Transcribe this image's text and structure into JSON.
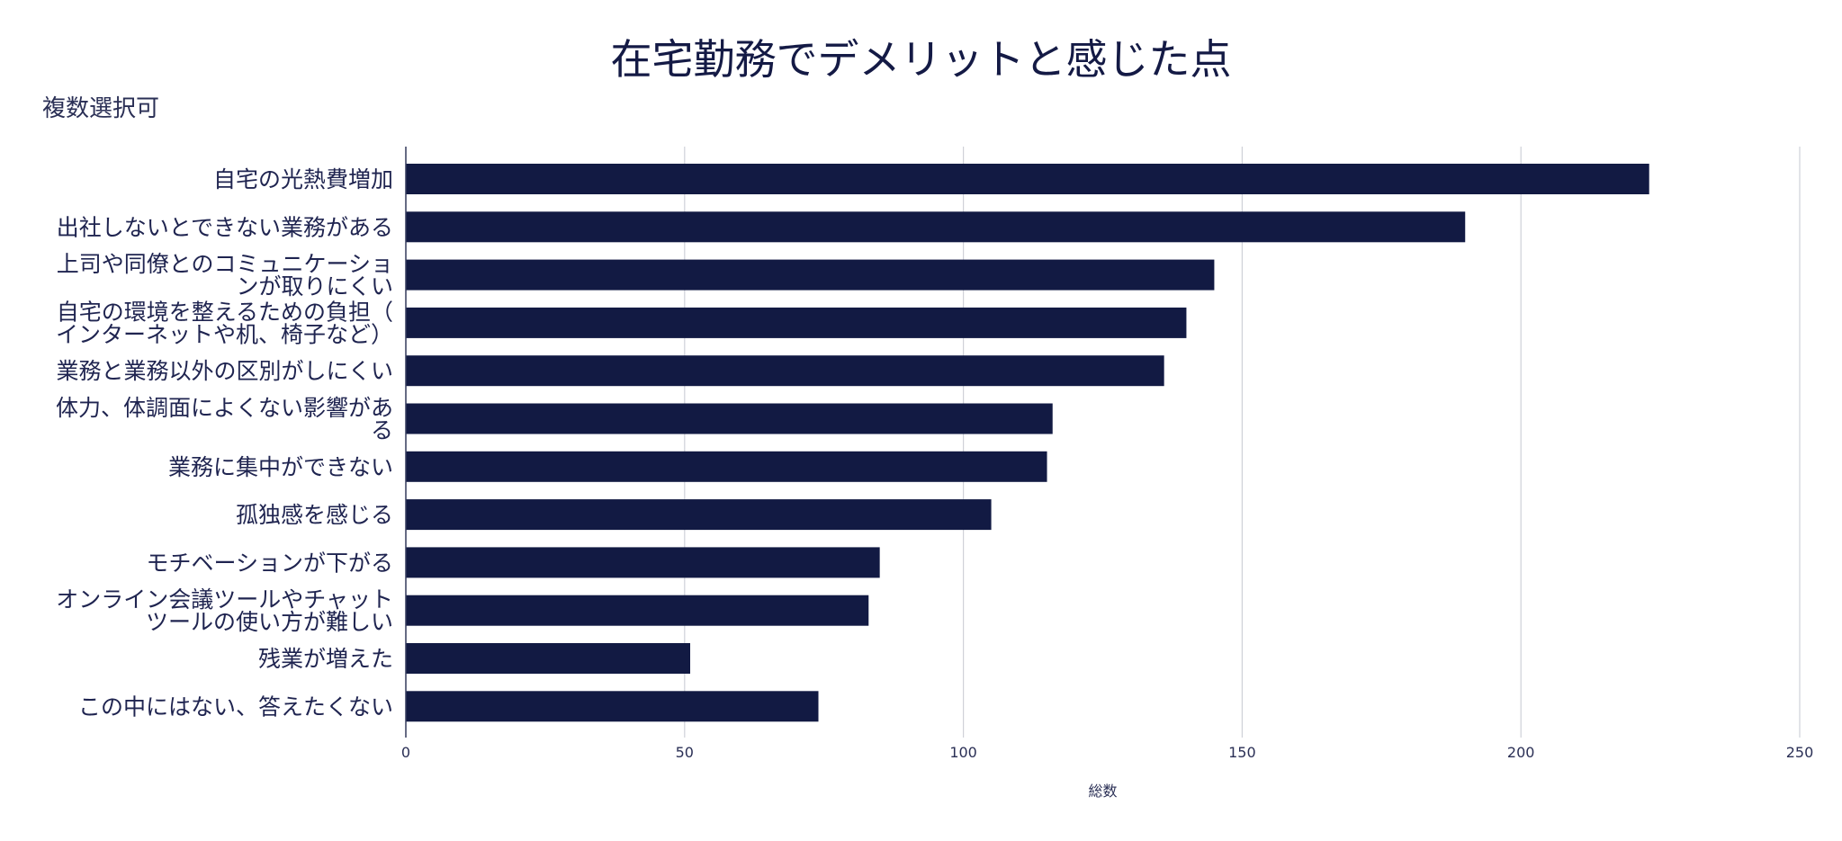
{
  "chart_data": {
    "type": "bar",
    "orientation": "horizontal",
    "title": "在宅勤務でデメリットと感じた点",
    "subtitle": "複数選択可",
    "xlabel": "総数",
    "ylabel": "",
    "xlim": [
      0,
      250
    ],
    "xticks": [
      0,
      50,
      100,
      150,
      200,
      250
    ],
    "grid": true,
    "bar_color": "#121a43",
    "categories": [
      [
        "自宅の光熱費増加"
      ],
      [
        "出社しないとできない業務がある"
      ],
      [
        "上司や同僚とのコミュニケーショ",
        "ンが取りにくい"
      ],
      [
        "自宅の環境を整えるための負担（",
        "インターネットや机、椅子など）"
      ],
      [
        "業務と業務以外の区別がしにくい"
      ],
      [
        "体力、体調面によくない影響があ",
        "る"
      ],
      [
        "業務に集中ができない"
      ],
      [
        "孤独感を感じる"
      ],
      [
        "モチベーションが下がる"
      ],
      [
        "オンライン会議ツールやチャット",
        "ツールの使い方が難しい"
      ],
      [
        "残業が増えた"
      ],
      [
        "この中にはない、答えたくない"
      ]
    ],
    "values": [
      223,
      190,
      145,
      140,
      136,
      116,
      115,
      105,
      85,
      83,
      51,
      74
    ]
  }
}
